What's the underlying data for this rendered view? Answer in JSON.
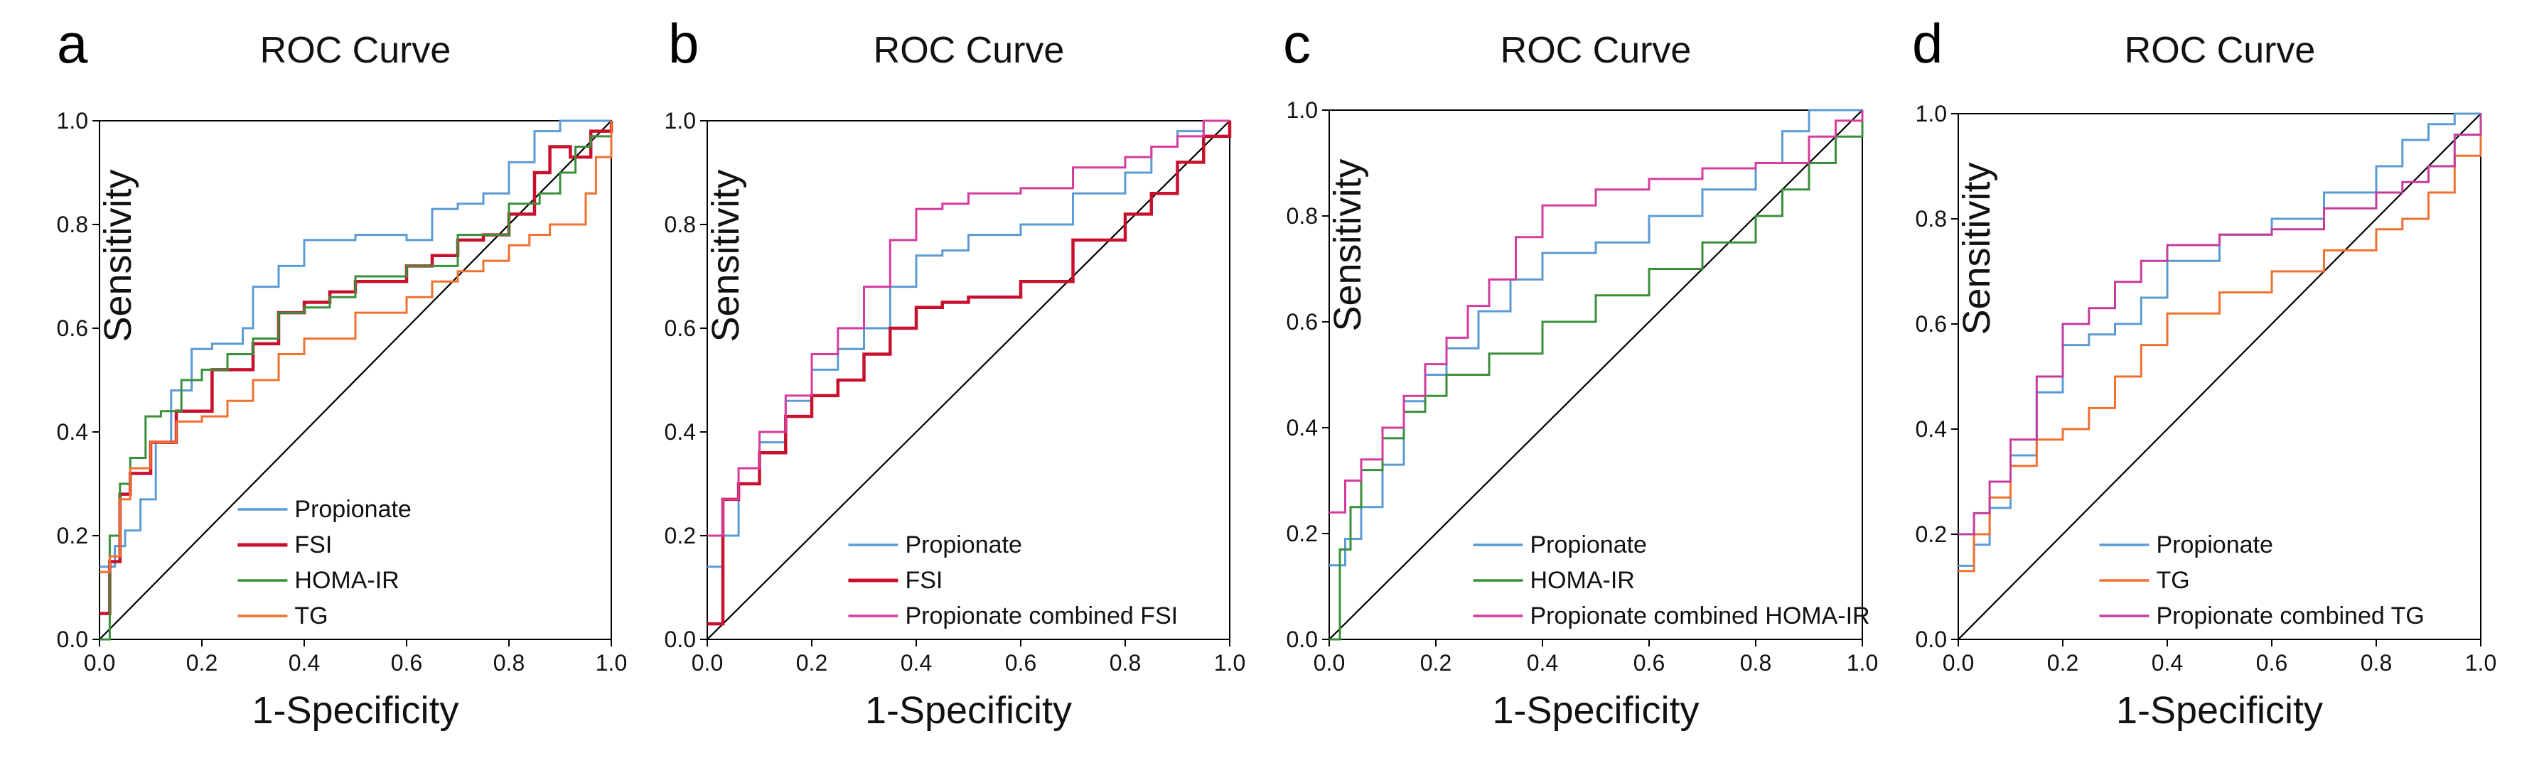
{
  "figure": {
    "panels": [
      "a",
      "b",
      "c",
      "d"
    ]
  },
  "chart_data": [
    {
      "panel": "a",
      "type": "line",
      "title": "ROC Curve",
      "xlabel": "1-Specificity",
      "ylabel": "Sensitivity",
      "xlim": [
        0,
        1
      ],
      "ylim": [
        0,
        1
      ],
      "xticks": [
        "0.0",
        "0.2",
        "0.4",
        "0.6",
        "0.8",
        "1.0"
      ],
      "yticks": [
        "0.0",
        "0.2",
        "0.4",
        "0.6",
        "0.8",
        "1.0"
      ],
      "legend_position": "bottom-center",
      "reference_line": true,
      "series": [
        {
          "name": "Propionate",
          "color": "#5b9bd5",
          "x": [
            0,
            0.03,
            0.05,
            0.08,
            0.11,
            0.14,
            0.18,
            0.22,
            0.28,
            0.3,
            0.35,
            0.4,
            0.5,
            0.55,
            0.6,
            0.65,
            0.7,
            0.75,
            0.8,
            0.85,
            0.9,
            1.0
          ],
          "y": [
            0.14,
            0.18,
            0.21,
            0.27,
            0.38,
            0.48,
            0.56,
            0.57,
            0.6,
            0.68,
            0.72,
            0.77,
            0.78,
            0.78,
            0.77,
            0.83,
            0.84,
            0.86,
            0.92,
            0.98,
            1.0,
            1.0
          ]
        },
        {
          "name": "FSI",
          "color": "#c8102e",
          "x": [
            0,
            0.02,
            0.04,
            0.06,
            0.1,
            0.15,
            0.22,
            0.3,
            0.35,
            0.4,
            0.45,
            0.5,
            0.6,
            0.65,
            0.7,
            0.75,
            0.8,
            0.85,
            0.88,
            0.92,
            0.96,
            1.0
          ],
          "y": [
            0.05,
            0.15,
            0.28,
            0.32,
            0.38,
            0.44,
            0.52,
            0.57,
            0.63,
            0.65,
            0.67,
            0.69,
            0.72,
            0.74,
            0.77,
            0.78,
            0.82,
            0.9,
            0.95,
            0.93,
            0.98,
            1.0
          ]
        },
        {
          "name": "HOMA-IR",
          "color": "#3a8f3a",
          "x": [
            0,
            0.02,
            0.04,
            0.06,
            0.09,
            0.12,
            0.16,
            0.2,
            0.25,
            0.3,
            0.35,
            0.4,
            0.45,
            0.5,
            0.6,
            0.7,
            0.8,
            0.86,
            0.9,
            0.93,
            0.96,
            1.0
          ],
          "y": [
            0,
            0.2,
            0.3,
            0.35,
            0.43,
            0.44,
            0.5,
            0.52,
            0.55,
            0.58,
            0.63,
            0.64,
            0.66,
            0.7,
            0.72,
            0.78,
            0.84,
            0.86,
            0.9,
            0.95,
            0.97,
            1.0
          ]
        },
        {
          "name": "TG",
          "color": "#f07030",
          "x": [
            0,
            0.02,
            0.04,
            0.06,
            0.1,
            0.15,
            0.2,
            0.25,
            0.3,
            0.35,
            0.4,
            0.5,
            0.6,
            0.65,
            0.7,
            0.75,
            0.8,
            0.84,
            0.88,
            0.92,
            0.95,
            0.97,
            1.0
          ],
          "y": [
            0.13,
            0.16,
            0.27,
            0.33,
            0.38,
            0.42,
            0.43,
            0.46,
            0.5,
            0.55,
            0.58,
            0.63,
            0.66,
            0.69,
            0.71,
            0.73,
            0.76,
            0.78,
            0.8,
            0.8,
            0.86,
            0.93,
            1.0
          ]
        }
      ]
    },
    {
      "panel": "b",
      "type": "line",
      "title": "ROC Curve",
      "xlabel": "1-Specificity",
      "ylabel": "Sensitivity",
      "xlim": [
        0,
        1
      ],
      "ylim": [
        0,
        1
      ],
      "xticks": [
        "0.0",
        "0.2",
        "0.4",
        "0.6",
        "0.8",
        "1.0"
      ],
      "yticks": [
        "0.0",
        "0.2",
        "0.4",
        "0.6",
        "0.8",
        "1.0"
      ],
      "legend_position": "bottom-center",
      "reference_line": true,
      "series": [
        {
          "name": "Propionate",
          "color": "#5b9bd5",
          "x": [
            0,
            0.03,
            0.06,
            0.1,
            0.15,
            0.2,
            0.25,
            0.3,
            0.35,
            0.4,
            0.45,
            0.5,
            0.6,
            0.7,
            0.8,
            0.85,
            0.9,
            0.95,
            1.0
          ],
          "y": [
            0.14,
            0.2,
            0.3,
            0.38,
            0.46,
            0.52,
            0.56,
            0.6,
            0.68,
            0.74,
            0.75,
            0.78,
            0.8,
            0.86,
            0.9,
            0.95,
            0.98,
            1.0,
            1.0
          ]
        },
        {
          "name": "FSI",
          "color": "#c8102e",
          "x": [
            0,
            0.03,
            0.06,
            0.1,
            0.15,
            0.2,
            0.25,
            0.3,
            0.35,
            0.4,
            0.45,
            0.5,
            0.6,
            0.7,
            0.8,
            0.85,
            0.9,
            0.95,
            1.0
          ],
          "y": [
            0.03,
            0.27,
            0.3,
            0.36,
            0.43,
            0.47,
            0.5,
            0.55,
            0.6,
            0.64,
            0.65,
            0.66,
            0.69,
            0.77,
            0.82,
            0.86,
            0.92,
            0.97,
            1.0
          ]
        },
        {
          "name": "Propionate combined FSI",
          "color": "#d63b9e",
          "x": [
            0,
            0.03,
            0.06,
            0.1,
            0.15,
            0.2,
            0.25,
            0.3,
            0.35,
            0.4,
            0.45,
            0.5,
            0.6,
            0.7,
            0.8,
            0.85,
            0.9,
            0.95,
            1.0
          ],
          "y": [
            0.2,
            0.27,
            0.33,
            0.4,
            0.47,
            0.55,
            0.6,
            0.68,
            0.77,
            0.83,
            0.84,
            0.86,
            0.87,
            0.91,
            0.93,
            0.95,
            0.97,
            1.0,
            1.0
          ]
        }
      ]
    },
    {
      "panel": "c",
      "type": "line",
      "title": "ROC Curve",
      "xlabel": "1-Specificity",
      "ylabel": "Sensitivity",
      "xlim": [
        0,
        1
      ],
      "ylim": [
        0,
        1
      ],
      "xticks": [
        "0.0",
        "0.2",
        "0.4",
        "0.6",
        "0.8",
        "1.0"
      ],
      "yticks": [
        "0.0",
        "0.2",
        "0.4",
        "0.6",
        "0.8",
        "1.0"
      ],
      "legend_position": "bottom-center",
      "reference_line": true,
      "series": [
        {
          "name": "Propionate",
          "color": "#5b9bd5",
          "x": [
            0,
            0.03,
            0.06,
            0.1,
            0.14,
            0.18,
            0.22,
            0.28,
            0.34,
            0.4,
            0.5,
            0.6,
            0.7,
            0.8,
            0.85,
            0.9,
            0.95,
            1.0
          ],
          "y": [
            0.14,
            0.19,
            0.25,
            0.33,
            0.45,
            0.5,
            0.55,
            0.62,
            0.68,
            0.73,
            0.75,
            0.8,
            0.85,
            0.9,
            0.96,
            1.0,
            1.0,
            1.0
          ]
        },
        {
          "name": "HOMA-IR",
          "color": "#3a8f3a",
          "x": [
            0,
            0.02,
            0.04,
            0.06,
            0.1,
            0.14,
            0.18,
            0.22,
            0.3,
            0.4,
            0.5,
            0.6,
            0.7,
            0.8,
            0.85,
            0.9,
            0.95,
            1.0
          ],
          "y": [
            0,
            0.17,
            0.25,
            0.32,
            0.38,
            0.43,
            0.46,
            0.5,
            0.54,
            0.6,
            0.65,
            0.7,
            0.75,
            0.8,
            0.85,
            0.9,
            0.95,
            1.0
          ]
        },
        {
          "name": "Propionate combined HOMA-IR",
          "color": "#d63b9e",
          "x": [
            0,
            0.03,
            0.06,
            0.1,
            0.14,
            0.18,
            0.22,
            0.26,
            0.3,
            0.35,
            0.4,
            0.5,
            0.6,
            0.7,
            0.8,
            0.9,
            0.95,
            1.0
          ],
          "y": [
            0.24,
            0.3,
            0.34,
            0.4,
            0.46,
            0.52,
            0.57,
            0.63,
            0.68,
            0.76,
            0.82,
            0.85,
            0.87,
            0.89,
            0.9,
            0.95,
            0.98,
            1.0
          ]
        }
      ]
    },
    {
      "panel": "d",
      "type": "line",
      "title": "ROC Curve",
      "xlabel": "1-Specificity",
      "ylabel": "Sensitivity",
      "xlim": [
        0,
        1
      ],
      "ylim": [
        0,
        1
      ],
      "xticks": [
        "0.0",
        "0.2",
        "0.4",
        "0.6",
        "0.8",
        "1.0"
      ],
      "yticks": [
        "0.0",
        "0.2",
        "0.4",
        "0.6",
        "0.8",
        "1.0"
      ],
      "legend_position": "bottom-center",
      "reference_line": true,
      "series": [
        {
          "name": "Propionate",
          "color": "#5b9bd5",
          "x": [
            0,
            0.03,
            0.06,
            0.1,
            0.15,
            0.2,
            0.25,
            0.3,
            0.35,
            0.4,
            0.5,
            0.6,
            0.7,
            0.8,
            0.85,
            0.9,
            0.95,
            1.0
          ],
          "y": [
            0.14,
            0.18,
            0.25,
            0.35,
            0.47,
            0.56,
            0.58,
            0.6,
            0.65,
            0.72,
            0.77,
            0.8,
            0.85,
            0.9,
            0.95,
            0.98,
            1.0,
            1.0
          ]
        },
        {
          "name": "TG",
          "color": "#f07030",
          "x": [
            0,
            0.03,
            0.06,
            0.1,
            0.15,
            0.2,
            0.25,
            0.3,
            0.35,
            0.4,
            0.5,
            0.6,
            0.7,
            0.8,
            0.85,
            0.9,
            0.95,
            1.0
          ],
          "y": [
            0.13,
            0.2,
            0.27,
            0.33,
            0.38,
            0.4,
            0.44,
            0.5,
            0.56,
            0.62,
            0.66,
            0.7,
            0.74,
            0.78,
            0.8,
            0.85,
            0.92,
            1.0
          ]
        },
        {
          "name": "Propionate combined TG",
          "color": "#c43c9a",
          "x": [
            0,
            0.03,
            0.06,
            0.1,
            0.15,
            0.2,
            0.25,
            0.3,
            0.35,
            0.4,
            0.5,
            0.6,
            0.7,
            0.8,
            0.85,
            0.9,
            0.95,
            1.0
          ],
          "y": [
            0.2,
            0.24,
            0.3,
            0.38,
            0.5,
            0.6,
            0.63,
            0.68,
            0.72,
            0.75,
            0.77,
            0.78,
            0.82,
            0.85,
            0.87,
            0.9,
            0.96,
            1.0
          ]
        }
      ]
    }
  ]
}
